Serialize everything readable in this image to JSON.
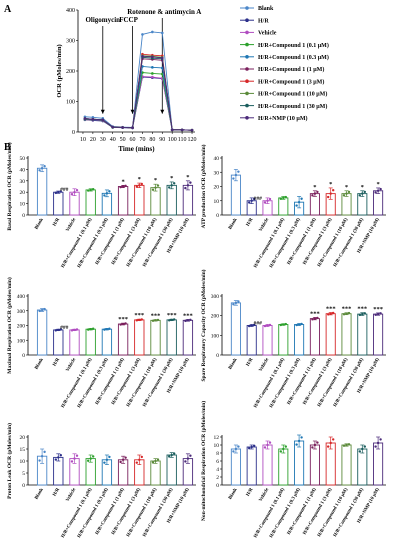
{
  "panel_labels": {
    "a": "A",
    "b": "B"
  },
  "colors": {
    "blank": "#4a86c8",
    "hr": "#2b2f8a",
    "vehicle": "#b04cc0",
    "c01": "#2ca02c",
    "c03": "#1f77b4",
    "c1": "#7a1f5c",
    "c3": "#d62728",
    "c10": "#5b8a3a",
    "c30": "#1b5e5e",
    "nmp": "#4b2a7a"
  },
  "chart_data": [
    {
      "type": "line",
      "title": "",
      "ylabel": "OCR (pMoles/min)",
      "xlabel": "Time (mins)",
      "xticks": [
        "10",
        "20",
        "30",
        "40",
        "50",
        "60",
        "70",
        "80",
        "90",
        "100",
        "110",
        "120"
      ],
      "yticks": [
        "0",
        "100",
        "200",
        "300",
        "400"
      ],
      "xlim": [
        5,
        123
      ],
      "ylim": [
        0,
        400
      ],
      "annotations": [
        "Oligomycin",
        "FCCP",
        "Rotenone & antimycin A"
      ],
      "annotation_x": [
        30,
        60,
        90
      ],
      "x": [
        12,
        20,
        30,
        40,
        50,
        60,
        70,
        80,
        90,
        100,
        110,
        120
      ],
      "series": [
        {
          "name": "Blank",
          "color": "#4a86c8",
          "values": [
            50,
            48,
            45,
            18,
            16,
            15,
            320,
            328,
            325,
            8,
            7,
            6
          ]
        },
        {
          "name": "H/R",
          "color": "#2b2f8a",
          "values": [
            40,
            38,
            36,
            15,
            14,
            13,
            180,
            178,
            175,
            7,
            7,
            6
          ]
        },
        {
          "name": "Vehicle",
          "color": "#b04cc0",
          "values": [
            40,
            39,
            37,
            16,
            15,
            14,
            182,
            180,
            176,
            7,
            7,
            6
          ]
        },
        {
          "name": "H/R+Compound 1 (0.1 μM)",
          "color": "#2ca02c",
          "values": [
            41,
            40,
            38,
            15,
            15,
            14,
            195,
            192,
            190,
            7,
            7,
            6
          ]
        },
        {
          "name": "H/R+Compound 1 (0.3 μM)",
          "color": "#1f77b4",
          "values": [
            42,
            40,
            38,
            16,
            15,
            14,
            215,
            212,
            210,
            7,
            7,
            6
          ]
        },
        {
          "name": "H/R+Compound 1 (1 μM)",
          "color": "#7a1f5c",
          "values": [
            43,
            41,
            39,
            16,
            15,
            14,
            240,
            238,
            235,
            7,
            7,
            6
          ]
        },
        {
          "name": "H/R+Compound 1 (3 μM)",
          "color": "#d62728",
          "values": [
            44,
            42,
            40,
            16,
            15,
            14,
            255,
            252,
            250,
            7,
            7,
            6
          ]
        },
        {
          "name": "H/R+Compound 1 (10 μM)",
          "color": "#5b8a3a",
          "values": [
            44,
            42,
            40,
            16,
            15,
            14,
            250,
            248,
            245,
            7,
            7,
            6
          ]
        },
        {
          "name": "H/R+Compound 1 (30 μM)",
          "color": "#1b5e5e",
          "values": [
            44,
            42,
            40,
            16,
            15,
            14,
            245,
            242,
            240,
            7,
            7,
            6
          ]
        },
        {
          "name": "H/R+NMP (10 μM)",
          "color": "#4b2a7a",
          "values": [
            44,
            42,
            40,
            16,
            15,
            14,
            248,
            246,
            243,
            7,
            7,
            6
          ]
        }
      ]
    },
    {
      "type": "bar",
      "ylabel": "Basal Respiration OCR (pMoles/min)",
      "yticks": [
        "0",
        "10",
        "20",
        "30",
        "40",
        "50"
      ],
      "ylim": [
        0,
        50
      ],
      "categories": [
        "Blank",
        "H/R",
        "Vehicle",
        "H/R+Compound 1 (0.1 μM)",
        "H/R+Compound 1 (0.3 μM)",
        "H/R+Compound 1 (1 μM)",
        "H/R+Compound 1 (3 μM)",
        "H/R+Compound 1 (10 μM)",
        "H/R+Compound 1 (30 μM)",
        "H/R+NMP (10 μM)"
      ],
      "values": [
        41,
        20,
        20,
        22,
        19,
        25,
        26,
        24,
        26,
        26
      ],
      "errors": [
        3,
        1,
        3,
        1,
        3,
        1,
        2,
        3,
        3,
        4
      ],
      "labels": [
        "",
        "###",
        "",
        "",
        "",
        "*",
        "*",
        "*",
        "*",
        "*"
      ]
    },
    {
      "type": "bar",
      "ylabel": "ATP production OCR (pMoles/min)",
      "yticks": [
        "0",
        "10",
        "20",
        "30",
        "40"
      ],
      "ylim": [
        0,
        40
      ],
      "categories": [
        "Blank",
        "H/R",
        "Vehicle",
        "H/R+Compound 1 (0.1 μM)",
        "H/R+Compound 1 (0.3 μM)",
        "H/R+Compound 1 (1 μM)",
        "H/R+Compound 1 (3 μM)",
        "H/R+Compound 1 (10 μM)",
        "H/R+Compound 1 (30 μM)",
        "H/R+NMP (10 μM)"
      ],
      "values": [
        28,
        10,
        10,
        12,
        9,
        15,
        15,
        15,
        15,
        17
      ],
      "errors": [
        4,
        2,
        2,
        1,
        4,
        2,
        4,
        2,
        2,
        2
      ],
      "labels": [
        "",
        "###",
        "",
        "",
        "",
        "*",
        "*",
        "*",
        "*",
        "*"
      ]
    },
    {
      "type": "bar",
      "ylabel": "Maximal Respiration OCR (pMoles/min)",
      "yticks": [
        "0",
        "100",
        "200",
        "300",
        "400"
      ],
      "ylim": [
        0,
        400
      ],
      "categories": [
        "Blank",
        "H/R",
        "Vehicle",
        "H/R+Compound 1 (0.1 μM)",
        "H/R+Compound 1 (0.3 μM)",
        "H/R+Compound 1 (1 μM)",
        "H/R+Compound 1 (3 μM)",
        "H/R+Compound 1 (10 μM)",
        "H/R+Compound 1 (30 μM)",
        "H/R+NMP (10 μM)"
      ],
      "values": [
        305,
        170,
        170,
        175,
        175,
        210,
        238,
        235,
        238,
        235
      ],
      "errors": [
        10,
        5,
        5,
        5,
        5,
        6,
        5,
        5,
        5,
        6
      ],
      "labels": [
        "",
        "###",
        "",
        "",
        "",
        "***",
        "***",
        "***",
        "***",
        "***"
      ]
    },
    {
      "type": "bar",
      "ylabel": "Spare Respiratory Capacity OCR (pMoles/min)",
      "yticks": [
        "0",
        "100",
        "200",
        "300"
      ],
      "ylim": [
        0,
        300
      ],
      "categories": [
        "Blank",
        "H/R",
        "Vehicle",
        "H/R+Compound 1 (0.1 μM)",
        "H/R+Compound 1 (0.3 μM)",
        "H/R+Compound 1 (1 μM)",
        "H/R+Compound 1 (3 μM)",
        "H/R+Compound 1 (10 μM)",
        "H/R+Compound 1 (30 μM)",
        "H/R+NMP (10 μM)"
      ],
      "values": [
        265,
        150,
        150,
        155,
        155,
        185,
        210,
        210,
        208,
        208
      ],
      "errors": [
        12,
        5,
        5,
        4,
        5,
        6,
        6,
        5,
        7,
        6
      ],
      "labels": [
        "",
        "###",
        "",
        "",
        "",
        "***",
        "***",
        "***",
        "***",
        "***"
      ]
    },
    {
      "type": "bar",
      "ylabel": "Proton Leak OCR (pMoles/min)",
      "yticks": [
        "0",
        "5",
        "10",
        "15",
        "20"
      ],
      "ylim": [
        0,
        20
      ],
      "categories": [
        "Blank",
        "H/R",
        "Vehicle",
        "H/R+Compound 1 (0.1 μM)",
        "H/R+Compound 1 (0.3 μM)",
        "H/R+Compound 1 (1 μM)",
        "H/R+Compound 1 (3 μM)",
        "H/R+Compound 1 (10 μM)",
        "H/R+Compound 1 (30 μM)",
        "H/R+NMP (10 μM)"
      ],
      "values": [
        12,
        11.5,
        11,
        11,
        10.5,
        10.5,
        10.5,
        10,
        12.5,
        11
      ],
      "errors": [
        3,
        1.5,
        2,
        1.5,
        2,
        1.5,
        2,
        1,
        1,
        2
      ],
      "labels": [
        "",
        "",
        "",
        "",
        "",
        "",
        "",
        "",
        "",
        ""
      ]
    },
    {
      "type": "bar",
      "ylabel": "Non-mitochondrial Respiration OCR (pMoles/min)",
      "yticks": [
        "0",
        "2",
        "4",
        "6",
        "8",
        "10",
        "12"
      ],
      "ylim": [
        0,
        12
      ],
      "categories": [
        "Blank",
        "H/R",
        "Vehicle",
        "H/R+Compound 1 (0.1 μM)",
        "H/R+Compound 1 (0.3 μM)",
        "H/R+Compound 1 (1 μM)",
        "H/R+Compound 1 (3 μM)",
        "H/R+Compound 1 (10 μM)",
        "H/R+Compound 1 (30 μM)",
        "H/R+NMP (10 μM)"
      ],
      "values": [
        9,
        9.5,
        10,
        9,
        11,
        10,
        10.5,
        10,
        9,
        10.5
      ],
      "errors": [
        1,
        0.5,
        1,
        1,
        1.5,
        1,
        1.5,
        0.3,
        1,
        1.5
      ],
      "labels": [
        "",
        "",
        "",
        "",
        "",
        "",
        "",
        "",
        "",
        ""
      ]
    }
  ]
}
